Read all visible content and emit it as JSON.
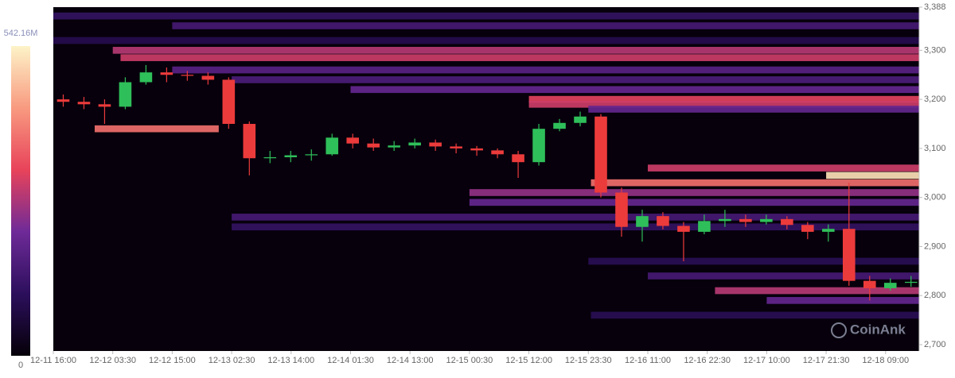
{
  "chart_data": {
    "type": "heatmap",
    "watermark": "CoinAnk",
    "colorbar": {
      "min": 0,
      "max": {
        "value": 542.16,
        "label": "542.16M"
      }
    },
    "colorscale": [
      "#050008",
      "#2c0f5c",
      "#6e2a98",
      "#e8435a",
      "#f89a80",
      "#fdf3c8"
    ],
    "background": "#07000c",
    "up_color": "#2fbf5a",
    "down_color": "#ec3b3b",
    "xlim": [
      "12-11 16:00",
      "12-18 15:30"
    ],
    "xticks": [
      "12-11 16:00",
      "12-12 03:30",
      "12-12 15:00",
      "12-13 02:30",
      "12-13 14:00",
      "12-14 01:30",
      "12-14 13:00",
      "12-15 00:30",
      "12-15 12:00",
      "12-15 23:30",
      "12-16 11:00",
      "12-16 22:30",
      "12-17 10:00",
      "12-17 21:30",
      "12-18 09:00"
    ],
    "ylim": [
      2687,
      3388
    ],
    "yticks": [
      {
        "value": 2700,
        "label": "2,700"
      },
      {
        "value": 2800,
        "label": "2,800"
      },
      {
        "value": 2900,
        "label": "2,900"
      },
      {
        "value": 3000,
        "label": "3,000"
      },
      {
        "value": 3100,
        "label": "3,100"
      },
      {
        "value": 3200,
        "label": "3,200"
      },
      {
        "value": 3300,
        "label": "3,300"
      },
      {
        "value": 3388,
        "label": "3,388"
      }
    ],
    "bands": {
      "price": [
        3370,
        3350,
        3320,
        3300,
        3285,
        3260,
        3240,
        3220,
        3200,
        3190,
        3180,
        3140,
        3060,
        3045,
        3030,
        3010,
        2990,
        2960,
        2940,
        2870,
        2840,
        2810,
        2790,
        2760
      ],
      "start": [
        "12-11 16:00",
        "12-12 15:00",
        "12-11 16:00",
        "12-12 03:30",
        "12-12 05:00",
        "12-12 15:00",
        "12-13 02:30",
        "12-14 01:30",
        "12-15 12:00",
        "12-15 12:00",
        "12-15 23:30",
        "12-12 00:00",
        "12-16 11:00",
        "12-17 21:30",
        "12-16 00:00",
        "12-15 00:30",
        "12-15 00:30",
        "12-13 02:30",
        "12-13 02:30",
        "12-15 23:30",
        "12-16 11:00",
        "12-17 00:00",
        "12-17 10:00",
        "12-16 00:00"
      ],
      "end": [
        "12-18 15:30",
        "12-18 15:30",
        "12-18 15:30",
        "12-18 15:30",
        "12-18 15:30",
        "12-18 15:30",
        "12-18 15:30",
        "12-18 15:30",
        "12-18 15:30",
        "12-18 15:30",
        "12-18 15:30",
        "12-13 00:00",
        "12-18 15:30",
        "12-18 15:30",
        "12-18 15:30",
        "12-18 15:30",
        "12-18 15:30",
        "12-18 15:30",
        "12-18 15:30",
        "12-18 15:30",
        "12-18 15:30",
        "12-18 15:30",
        "12-18 15:30",
        "12-18 15:30"
      ],
      "values": [
        120,
        150,
        90,
        280,
        300,
        180,
        160,
        200,
        320,
        300,
        200,
        380,
        300,
        520,
        380,
        250,
        200,
        150,
        120,
        100,
        150,
        280,
        200,
        100
      ]
    },
    "x": [
      "12-11 16:00",
      "12-11 20:00",
      "12-12 00:00",
      "12-12 04:00",
      "12-12 08:00",
      "12-12 12:00",
      "12-12 16:00",
      "12-12 20:00",
      "12-13 00:00",
      "12-13 04:00",
      "12-13 08:00",
      "12-13 12:00",
      "12-13 16:00",
      "12-13 20:00",
      "12-14 00:00",
      "12-14 04:00",
      "12-14 08:00",
      "12-14 12:00",
      "12-14 16:00",
      "12-14 20:00",
      "12-15 00:00",
      "12-15 04:00",
      "12-15 08:00",
      "12-15 12:00",
      "12-15 16:00",
      "12-15 20:00",
      "12-16 00:00",
      "12-16 04:00",
      "12-16 08:00",
      "12-16 12:00",
      "12-16 16:00",
      "12-16 20:00",
      "12-17 00:00",
      "12-17 04:00",
      "12-17 08:00",
      "12-17 12:00",
      "12-17 16:00",
      "12-17 20:00",
      "12-18 00:00",
      "12-18 04:00",
      "12-18 08:00",
      "12-18 12:00"
    ],
    "open": [
      3200,
      3195,
      3190,
      3185,
      3235,
      3255,
      3250,
      3248,
      3240,
      3150,
      3080,
      3082,
      3086,
      3088,
      3122,
      3110,
      3102,
      3106,
      3112,
      3104,
      3100,
      3096,
      3088,
      3072,
      3140,
      3152,
      3165,
      3010,
      2940,
      2962,
      2942,
      2930,
      2952,
      2956,
      2950,
      2956,
      2944,
      2930,
      2936,
      2830,
      2815,
      2826
    ],
    "high": [
      3210,
      3205,
      3200,
      3245,
      3270,
      3265,
      3258,
      3255,
      3245,
      3155,
      3095,
      3095,
      3098,
      3130,
      3130,
      3120,
      3115,
      3120,
      3118,
      3110,
      3105,
      3100,
      3095,
      3150,
      3160,
      3175,
      3170,
      3020,
      2975,
      2970,
      2950,
      2965,
      2975,
      2965,
      2965,
      2962,
      2950,
      2945,
      3030,
      2840,
      2835,
      2840
    ],
    "low": [
      3185,
      3180,
      3150,
      3180,
      3230,
      3235,
      3238,
      3230,
      3140,
      3045,
      3070,
      3072,
      3075,
      3085,
      3100,
      3095,
      3095,
      3100,
      3095,
      3090,
      3085,
      3080,
      3040,
      3065,
      3135,
      3145,
      3000,
      2920,
      2910,
      2935,
      2870,
      2925,
      2940,
      2940,
      2945,
      2935,
      2915,
      2910,
      2820,
      2790,
      2810,
      2818
    ],
    "close": [
      3195,
      3190,
      3185,
      3235,
      3255,
      3250,
      3248,
      3240,
      3150,
      3080,
      3082,
      3086,
      3088,
      3122,
      3110,
      3102,
      3106,
      3112,
      3104,
      3100,
      3096,
      3088,
      3072,
      3140,
      3152,
      3165,
      3010,
      2940,
      2962,
      2942,
      2930,
      2952,
      2956,
      2950,
      2956,
      2944,
      2930,
      2936,
      2830,
      2815,
      2826,
      2828
    ]
  }
}
